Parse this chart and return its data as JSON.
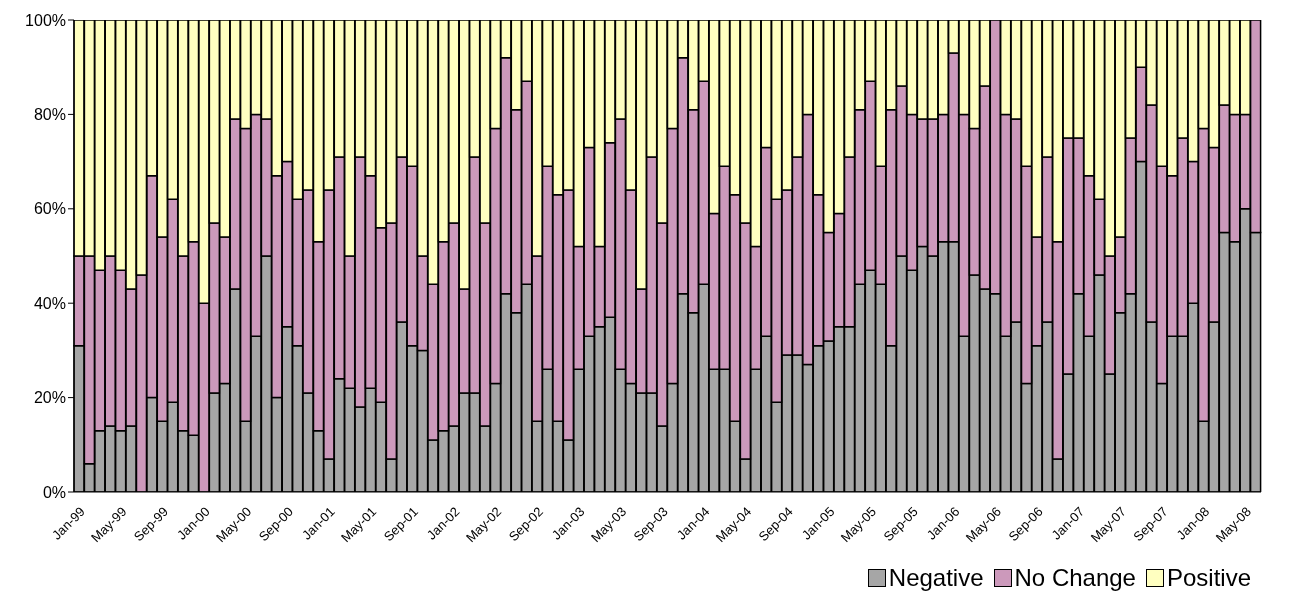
{
  "chart_data": {
    "type": "bar",
    "stacked": true,
    "categories": [
      "Jan-99",
      null,
      null,
      null,
      "May-99",
      null,
      null,
      null,
      "Sep-99",
      null,
      null,
      null,
      "Jan-00",
      null,
      null,
      null,
      "May-00",
      null,
      null,
      null,
      "Sep-00",
      null,
      null,
      null,
      "Jan-01",
      null,
      null,
      null,
      "May-01",
      null,
      null,
      null,
      "Sep-01",
      null,
      null,
      null,
      "Jan-02",
      null,
      null,
      null,
      "May-02",
      null,
      null,
      null,
      "Sep-02",
      null,
      null,
      null,
      "Jan-03",
      null,
      null,
      null,
      "May-03",
      null,
      null,
      null,
      "Sep-03",
      null,
      null,
      null,
      "Jan-04",
      null,
      null,
      null,
      "May-04",
      null,
      null,
      null,
      "Sep-04",
      null,
      null,
      null,
      "Jan-05",
      null,
      null,
      null,
      "May-05",
      null,
      null,
      null,
      "Sep-05",
      null,
      null,
      null,
      "Jan-06",
      null,
      null,
      null,
      "May-06",
      null,
      null,
      null,
      "Sep-06",
      null,
      null,
      null,
      "Jan-07",
      null,
      null,
      null,
      "May-07",
      null,
      null,
      null,
      "Sep-07",
      null,
      null,
      null,
      "Jan-08",
      null,
      null,
      null,
      "May-08",
      null
    ],
    "series": [
      {
        "name": "Negative",
        "color": "#a6a6a6",
        "values": [
          31,
          6,
          13,
          14,
          13,
          14,
          0,
          20,
          15,
          19,
          13,
          12,
          0,
          21,
          23,
          43,
          15,
          33,
          50,
          20,
          35,
          31,
          21,
          13,
          7,
          24,
          22,
          18,
          22,
          19,
          7,
          36,
          31,
          30,
          11,
          13,
          14,
          21,
          21,
          14,
          23,
          42,
          38,
          44,
          15,
          26,
          15,
          11,
          26,
          33,
          35,
          37,
          26,
          23,
          21,
          21,
          14,
          23,
          42,
          38,
          44,
          26,
          26,
          15,
          7,
          26,
          33,
          19,
          29,
          29,
          27,
          31,
          32,
          35,
          35,
          44,
          47,
          44,
          31,
          50,
          47,
          52,
          50,
          53,
          53,
          33,
          46,
          43,
          42,
          33,
          36,
          23,
          31,
          36,
          7,
          25,
          42,
          33,
          46,
          25,
          38,
          42,
          70,
          36,
          23,
          33,
          33,
          40,
          15,
          36,
          55,
          53,
          60,
          55
        ]
      },
      {
        "name": "No Change",
        "color": "#cc99bb",
        "values": [
          19,
          44,
          34,
          36,
          34,
          29,
          46,
          47,
          39,
          43,
          37,
          41,
          40,
          36,
          31,
          36,
          62,
          47,
          29,
          47,
          35,
          31,
          43,
          40,
          57,
          47,
          28,
          53,
          45,
          37,
          50,
          35,
          38,
          20,
          33,
          40,
          43,
          22,
          50,
          43,
          54,
          50,
          43,
          43,
          35,
          43,
          48,
          53,
          26,
          40,
          17,
          37,
          53,
          41,
          22,
          50,
          43,
          54,
          50,
          43,
          43,
          33,
          43,
          48,
          50,
          26,
          40,
          43,
          35,
          42,
          53,
          32,
          23,
          24,
          36,
          37,
          40,
          25,
          50,
          36,
          33,
          27,
          29,
          27,
          40,
          47,
          31,
          43,
          58,
          47,
          43,
          46,
          23,
          35,
          46,
          50,
          33,
          34,
          16,
          25,
          16,
          33,
          20,
          46,
          46,
          34,
          42,
          30,
          62,
          37,
          27,
          27,
          20,
          45
        ]
      },
      {
        "name": "Positive",
        "color": "#ffffc0",
        "values": [
          50,
          50,
          53,
          50,
          53,
          57,
          54,
          33,
          46,
          38,
          50,
          47,
          60,
          43,
          46,
          21,
          23,
          20,
          21,
          33,
          30,
          38,
          36,
          47,
          36,
          29,
          50,
          29,
          33,
          44,
          43,
          29,
          31,
          50,
          56,
          47,
          43,
          57,
          29,
          43,
          23,
          8,
          19,
          13,
          50,
          31,
          37,
          36,
          48,
          27,
          48,
          26,
          21,
          36,
          57,
          29,
          43,
          23,
          8,
          19,
          13,
          41,
          31,
          37,
          43,
          48,
          27,
          38,
          36,
          29,
          20,
          37,
          45,
          41,
          29,
          19,
          13,
          31,
          19,
          14,
          20,
          21,
          21,
          20,
          7,
          20,
          23,
          14,
          0,
          20,
          21,
          31,
          46,
          29,
          47,
          25,
          25,
          33,
          38,
          50,
          46,
          25,
          10,
          18,
          31,
          33,
          25,
          30,
          23,
          27,
          18,
          20,
          20,
          0
        ]
      }
    ],
    "ylim": [
      0,
      100
    ],
    "yticks": [
      {
        "value": 0,
        "label": "0%"
      },
      {
        "value": 20,
        "label": "20%"
      },
      {
        "value": 40,
        "label": "40%"
      },
      {
        "value": 60,
        "label": "60%"
      },
      {
        "value": 80,
        "label": "80%"
      },
      {
        "value": 100,
        "label": "100%"
      }
    ],
    "grid": false,
    "legend": "bottom right"
  }
}
